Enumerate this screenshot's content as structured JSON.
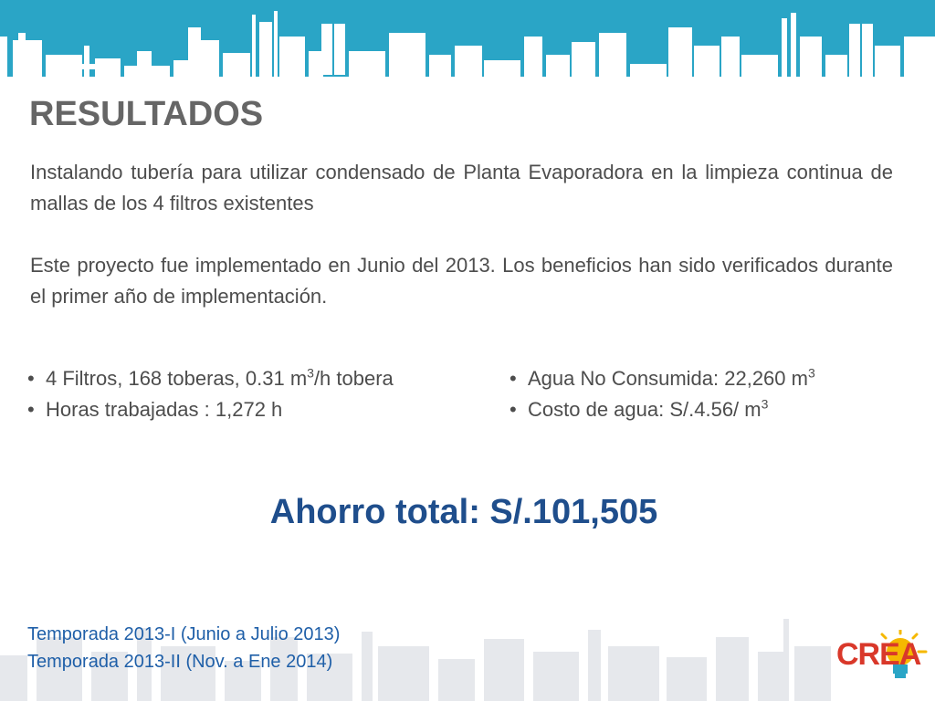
{
  "header": {
    "illustration": "factory-skyline-silhouette"
  },
  "title": "RESULTADOS",
  "paragraphs": {
    "p1": "Instalando tubería para utilizar condensado de Planta Evaporadora en la limpieza continua de mallas de los 4 filtros existentes",
    "p2": "Este proyecto fue implementado en Junio del 2013. Los beneficios han sido verificados durante el primer año de implementación."
  },
  "bullets_left": {
    "item1_pre": "4 Filtros, 168 toberas, 0.31 m",
    "item1_sup": "3",
    "item1_post": "/h tobera",
    "item2": "Horas trabajadas : 1,272 h"
  },
  "bullets_right": {
    "item1_pre": "Agua No Consumida: 22,260 m",
    "item1_sup": "3",
    "item2_pre": "Costo de agua: S/.4.56/ m",
    "item2_sup": "3"
  },
  "bullet_symbol": "•",
  "total": "Ahorro total:  S/.101,505",
  "seasons": {
    "s1": "Temporada 2013-I (Junio a Julio 2013)",
    "s2": "Temporada 2013-II (Nov. a Ene 2014)"
  },
  "logo": {
    "text": "CREA",
    "icon": "lightbulb-icon"
  },
  "colors": {
    "header": "#2aa5c6",
    "title": "#666666",
    "total": "#1f4e8c",
    "season": "#1f5fa8",
    "logo": "#d9382a",
    "logo_bulb": "#f5b800"
  }
}
